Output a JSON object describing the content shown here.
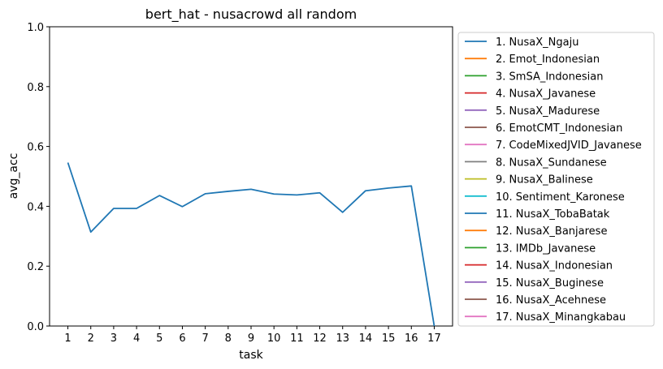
{
  "chart_data": {
    "type": "line",
    "title": "bert_hat - nusacrowd all random",
    "xlabel": "task",
    "ylabel": "avg_acc",
    "ylim": [
      0,
      1.0
    ],
    "xlim": [
      0.2,
      17.8
    ],
    "yticks": [
      "0.0",
      "0.2",
      "0.4",
      "0.6",
      "0.8",
      "1.0"
    ],
    "xticks": [
      "1",
      "2",
      "3",
      "4",
      "5",
      "6",
      "7",
      "8",
      "9",
      "10",
      "11",
      "12",
      "13",
      "14",
      "15",
      "16",
      "17"
    ],
    "grid": false,
    "legend_position": "outside-right",
    "x": [
      1,
      2,
      3,
      4,
      5,
      6,
      7,
      8,
      9,
      10,
      11,
      12,
      13,
      14,
      15,
      16,
      17
    ],
    "series": [
      {
        "name": "1. NusaX_Ngaju",
        "color": "#1f77b4",
        "values": [
          0.546,
          0.314,
          0.393,
          0.393,
          0.436,
          0.399,
          0.442,
          0.45,
          0.457,
          0.441,
          0.438,
          0.445,
          0.38,
          0.452,
          0.461,
          0.468,
          0.0
        ]
      }
    ],
    "legend": [
      {
        "label": "1. NusaX_Ngaju",
        "color": "#1f77b4"
      },
      {
        "label": "2. Emot_Indonesian",
        "color": "#ff7f0e"
      },
      {
        "label": "3. SmSA_Indonesian",
        "color": "#2ca02c"
      },
      {
        "label": "4. NusaX_Javanese",
        "color": "#d62728"
      },
      {
        "label": "5. NusaX_Madurese",
        "color": "#9467bd"
      },
      {
        "label": "6. EmotCMT_Indonesian",
        "color": "#8c564b"
      },
      {
        "label": "7. CodeMixedJVID_Javanese",
        "color": "#e377c2"
      },
      {
        "label": "8. NusaX_Sundanese",
        "color": "#7f7f7f"
      },
      {
        "label": "9. NusaX_Balinese",
        "color": "#bcbd22"
      },
      {
        "label": "10. Sentiment_Karonese",
        "color": "#17becf"
      },
      {
        "label": "11. NusaX_TobaBatak",
        "color": "#1f77b4"
      },
      {
        "label": "12. NusaX_Banjarese",
        "color": "#ff7f0e"
      },
      {
        "label": "13. IMDb_Javanese",
        "color": "#2ca02c"
      },
      {
        "label": "14. NusaX_Indonesian",
        "color": "#d62728"
      },
      {
        "label": "15. NusaX_Buginese",
        "color": "#9467bd"
      },
      {
        "label": "16. NusaX_Acehnese",
        "color": "#8c564b"
      },
      {
        "label": "17. NusaX_Minangkabau",
        "color": "#e377c2"
      }
    ]
  }
}
